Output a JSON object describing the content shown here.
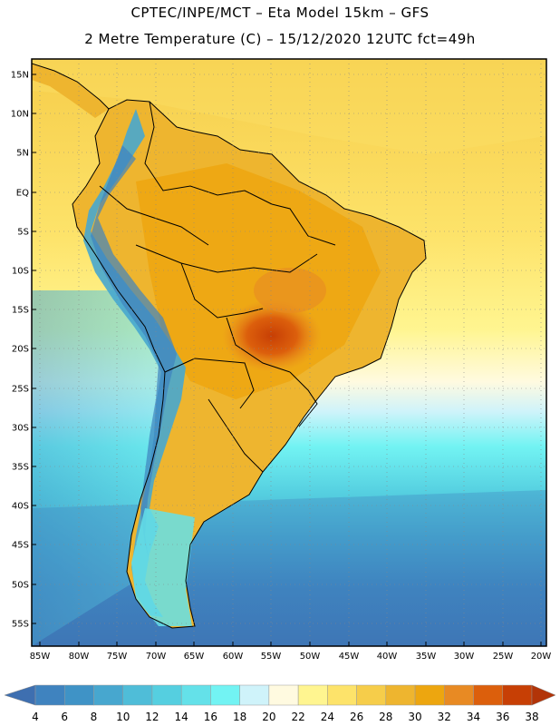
{
  "header": {
    "line1": "CPTEC/INPE/MCT  –   Eta Model 15km  –  GFS",
    "line2": "2 Metre Temperature (C) – 15/12/2020 12UTC fct=49h"
  },
  "map": {
    "lat_labels": [
      "15N",
      "10N",
      "5N",
      "EQ",
      "5S",
      "10S",
      "15S",
      "20S",
      "25S",
      "30S",
      "35S",
      "40S",
      "45S",
      "50S",
      "55S"
    ],
    "lon_labels": [
      "85W",
      "80W",
      "75W",
      "70W",
      "65W",
      "60W",
      "55W",
      "50W",
      "45W",
      "40W",
      "35W",
      "30W",
      "25W",
      "20W"
    ]
  },
  "colorbar": {
    "levels": [
      "4",
      "6",
      "8",
      "10",
      "12",
      "14",
      "16",
      "18",
      "20",
      "22",
      "24",
      "26",
      "28",
      "30",
      "32",
      "34",
      "36",
      "38"
    ],
    "colors": [
      "#3e6fb0",
      "#3f83bf",
      "#3f93c6",
      "#47a7cf",
      "#4fbdd8",
      "#55cfe0",
      "#64e1e9",
      "#72f3f3",
      "#cff3fa",
      "#fffae0",
      "#fff590",
      "#fde36a",
      "#f6cd4a",
      "#eeb52f",
      "#eda60f",
      "#e88a23",
      "#dc5f0c",
      "#c73f05",
      "#b23408"
    ]
  }
}
